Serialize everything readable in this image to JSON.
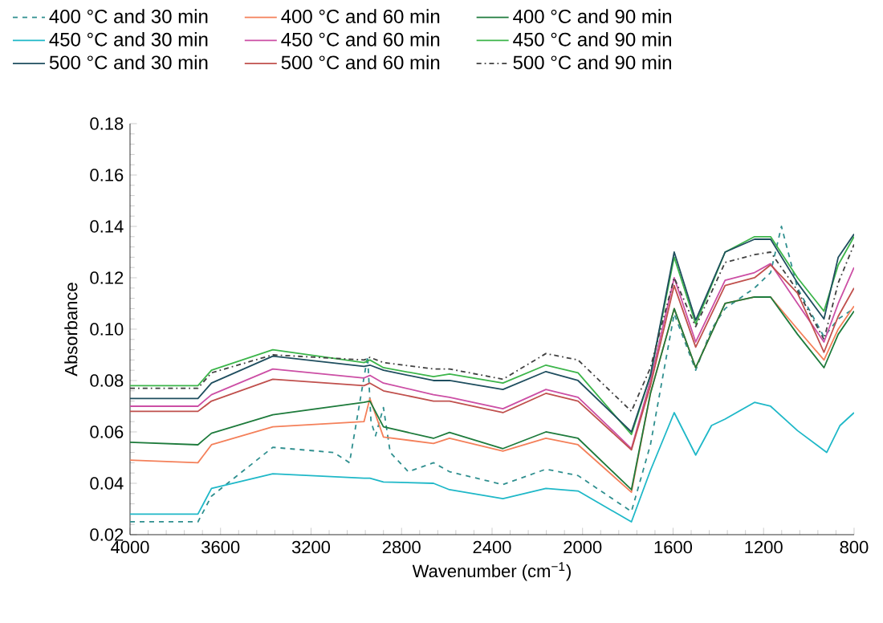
{
  "chart_data": {
    "type": "line",
    "xlabel": "Wavenumber (cm$^{−1}$)",
    "ylabel": "Absorbance",
    "xlim": [
      4000,
      800
    ],
    "xticks": [
      4000,
      3600,
      3200,
      2800,
      2400,
      2000,
      1600,
      1200,
      800
    ],
    "ylim": [
      0.02,
      0.18
    ],
    "yticks": [
      {
        "value": 0.02,
        "label": "0.02"
      },
      {
        "value": 0.04,
        "label": "0.04"
      },
      {
        "value": 0.06,
        "label": "0.06"
      },
      {
        "value": 0.08,
        "label": "0.08"
      },
      {
        "value": 0.1,
        "label": "0.10"
      },
      {
        "value": 0.12,
        "label": "0.12"
      },
      {
        "value": 0.14,
        "label": "0.14"
      },
      {
        "value": 0.16,
        "label": "0.16"
      },
      {
        "value": 0.18,
        "label": "0.18"
      }
    ],
    "legend": "top",
    "grid": false,
    "marker": "none",
    "series": [
      {
        "name": "400 °C and 30 min",
        "color": "#2f8f8f",
        "line_style": "dashed",
        "x": [
          4000,
          3700,
          3640,
          3369,
          3100,
          3030,
          2950,
          2935,
          2915,
          2880,
          2850,
          2770,
          2659,
          2588,
          2352,
          2162,
          2020,
          1784,
          1700,
          1595,
          1500,
          1430,
          1370,
          1240,
          1169,
          1121,
          1050,
          933,
          870,
          800
        ],
        "values": [
          0.025,
          0.025,
          0.035,
          0.054,
          0.052,
          0.048,
          0.0895,
          0.064,
          0.0585,
          0.0695,
          0.052,
          0.0445,
          0.048,
          0.0445,
          0.0395,
          0.0455,
          0.043,
          0.029,
          0.055,
          0.106,
          0.084,
          0.1,
          0.108,
          0.116,
          0.122,
          0.14,
          0.116,
          0.097,
          0.104,
          0.108
        ]
      },
      {
        "name": "400 °C and 60 min",
        "color": "#f4805a",
        "line_style": "solid",
        "x": [
          4000,
          3700,
          3640,
          3369,
          2966,
          2940,
          2880,
          2659,
          2588,
          2352,
          2162,
          2020,
          1784,
          1700,
          1595,
          1500,
          1370,
          1240,
          1169,
          1050,
          933,
          870,
          800
        ],
        "values": [
          0.049,
          0.048,
          0.055,
          0.062,
          0.064,
          0.073,
          0.058,
          0.0555,
          0.0575,
          0.0525,
          0.0575,
          0.055,
          0.0365,
          0.075,
          0.108,
          0.085,
          0.11,
          0.1125,
          0.1125,
          0.1,
          0.088,
          0.1,
          0.109
        ]
      },
      {
        "name": "400 °C and 90 min",
        "color": "#1e7b3c",
        "line_style": "solid",
        "x": [
          4000,
          3700,
          3640,
          3369,
          2966,
          2940,
          2880,
          2659,
          2588,
          2352,
          2162,
          2020,
          1784,
          1700,
          1595,
          1500,
          1370,
          1240,
          1169,
          1050,
          933,
          870,
          800
        ],
        "values": [
          0.056,
          0.055,
          0.0595,
          0.0667,
          0.0715,
          0.072,
          0.062,
          0.0575,
          0.0598,
          0.0535,
          0.06,
          0.0575,
          0.0375,
          0.075,
          0.108,
          0.085,
          0.11,
          0.1125,
          0.1125,
          0.098,
          0.085,
          0.098,
          0.107
        ]
      },
      {
        "name": "450 °C and 30 min",
        "color": "#1fb8c8",
        "line_style": "solid",
        "x": [
          4000,
          3700,
          3640,
          3369,
          2966,
          2940,
          2880,
          2659,
          2588,
          2352,
          2162,
          2020,
          1784,
          1700,
          1595,
          1500,
          1430,
          1370,
          1240,
          1169,
          1050,
          921,
          862,
          800
        ],
        "values": [
          0.028,
          0.028,
          0.038,
          0.0437,
          0.042,
          0.042,
          0.0405,
          0.04,
          0.0375,
          0.034,
          0.038,
          0.037,
          0.025,
          0.045,
          0.0675,
          0.051,
          0.0625,
          0.065,
          0.0715,
          0.07,
          0.0605,
          0.052,
          0.0625,
          0.0675
        ]
      },
      {
        "name": "450 °C and 60 min",
        "color": "#cc4fa5",
        "line_style": "solid",
        "x": [
          4000,
          3700,
          3640,
          3369,
          2966,
          2940,
          2880,
          2659,
          2588,
          2352,
          2162,
          2020,
          1784,
          1700,
          1595,
          1500,
          1370,
          1240,
          1169,
          1050,
          933,
          870,
          800
        ],
        "values": [
          0.07,
          0.07,
          0.0745,
          0.0845,
          0.081,
          0.082,
          0.079,
          0.0745,
          0.0735,
          0.069,
          0.0765,
          0.0735,
          0.0535,
          0.08,
          0.12,
          0.095,
          0.119,
          0.122,
          0.1255,
          0.11,
          0.095,
          0.11,
          0.124
        ]
      },
      {
        "name": "450 °C and 90 min",
        "color": "#3cb54a",
        "line_style": "solid",
        "x": [
          4000,
          3700,
          3640,
          3369,
          2966,
          2940,
          2880,
          2659,
          2588,
          2352,
          2162,
          2020,
          1784,
          1700,
          1595,
          1500,
          1370,
          1240,
          1169,
          1050,
          933,
          870,
          800
        ],
        "values": [
          0.078,
          0.078,
          0.084,
          0.092,
          0.087,
          0.088,
          0.085,
          0.0815,
          0.0825,
          0.079,
          0.086,
          0.083,
          0.059,
          0.082,
          0.128,
          0.102,
          0.13,
          0.136,
          0.136,
          0.12,
          0.107,
          0.125,
          0.136
        ]
      },
      {
        "name": "500 °C and 30 min",
        "color": "#1f4e5f",
        "line_style": "solid",
        "x": [
          4000,
          3700,
          3640,
          3369,
          2966,
          2940,
          2880,
          2659,
          2588,
          2352,
          2162,
          2020,
          1784,
          1700,
          1595,
          1500,
          1370,
          1240,
          1169,
          1050,
          933,
          870,
          800
        ],
        "values": [
          0.073,
          0.073,
          0.079,
          0.0895,
          0.0855,
          0.086,
          0.084,
          0.08,
          0.08,
          0.0765,
          0.0835,
          0.08,
          0.06,
          0.082,
          0.13,
          0.1035,
          0.13,
          0.135,
          0.135,
          0.118,
          0.104,
          0.128,
          0.137
        ]
      },
      {
        "name": "500 °C and 60 min",
        "color": "#c0504d",
        "line_style": "solid",
        "x": [
          4000,
          3700,
          3640,
          3369,
          2966,
          2940,
          2880,
          2659,
          2588,
          2352,
          2162,
          2020,
          1784,
          1700,
          1595,
          1500,
          1370,
          1240,
          1169,
          1050,
          933,
          870,
          800
        ],
        "values": [
          0.068,
          0.068,
          0.072,
          0.0805,
          0.078,
          0.079,
          0.076,
          0.072,
          0.072,
          0.0675,
          0.075,
          0.072,
          0.053,
          0.078,
          0.117,
          0.093,
          0.117,
          0.12,
          0.125,
          0.114,
          0.091,
          0.105,
          0.116
        ]
      },
      {
        "name": "500 °C and 90 min",
        "color": "#404040",
        "line_style": "dashdot",
        "x": [
          4000,
          3700,
          3640,
          3369,
          2966,
          2940,
          2880,
          2659,
          2588,
          2352,
          2162,
          2020,
          1784,
          1700,
          1595,
          1500,
          1370,
          1240,
          1169,
          1050,
          933,
          870,
          800
        ],
        "values": [
          0.077,
          0.077,
          0.083,
          0.09,
          0.088,
          0.089,
          0.087,
          0.0845,
          0.0845,
          0.0805,
          0.0905,
          0.088,
          0.068,
          0.085,
          0.12,
          0.101,
          0.126,
          0.129,
          0.13,
          0.115,
          0.096,
          0.118,
          0.133
        ]
      }
    ]
  }
}
